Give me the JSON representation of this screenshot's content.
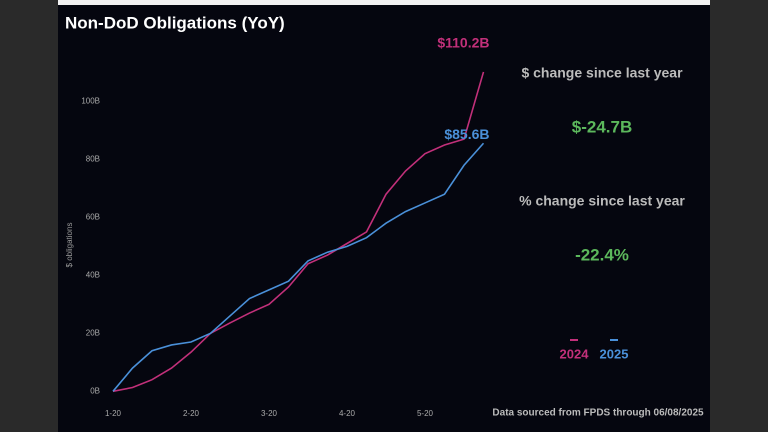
{
  "chart_data": {
    "type": "line",
    "title": "Non-DoD Obligations (YoY)",
    "y_label": "$ obligations",
    "categories": [
      "1-20",
      null,
      null,
      null,
      "2-20",
      null,
      null,
      null,
      "3-20",
      null,
      null,
      null,
      "4-20",
      null,
      null,
      null,
      "5-20",
      null,
      null,
      null
    ],
    "series": [
      {
        "name": "2024",
        "color": "#c2307a",
        "values": [
          0,
          1.3,
          4,
          8,
          13.5,
          20,
          23.6,
          27,
          30,
          36,
          44,
          47,
          51,
          55,
          68,
          76,
          82,
          85,
          87,
          110.2
        ],
        "value_labels": [
          null,
          null,
          null,
          null,
          null,
          null,
          null,
          null,
          null,
          null,
          null,
          null,
          null,
          null,
          null,
          null,
          null,
          null,
          null,
          "$110.2B"
        ]
      },
      {
        "name": "2025",
        "color": "#4a90d9",
        "values": [
          0,
          8,
          14,
          16,
          17,
          20,
          26,
          32,
          35,
          38,
          45,
          48,
          50,
          53,
          58,
          62,
          65,
          68,
          78,
          85.6
        ],
        "value_labels": [
          null,
          null,
          null,
          null,
          null,
          null,
          null,
          null,
          null,
          null,
          null,
          null,
          null,
          null,
          null,
          null,
          null,
          null,
          null,
          "$85.6B"
        ]
      }
    ],
    "ylim": [
      -3,
      105
    ],
    "yticks": [
      {
        "value": 0,
        "label": "0B"
      },
      {
        "value": 20,
        "label": "20B"
      },
      {
        "value": 40,
        "label": "40B"
      },
      {
        "value": 60,
        "label": "60B"
      },
      {
        "value": 80,
        "label": "80B"
      },
      {
        "value": 100,
        "label": "100B"
      }
    ],
    "grid": false
  },
  "panel": {
    "stats": [
      {
        "label": "$ change since last year",
        "value": "$-24.7B"
      },
      {
        "label": "% change since last year",
        "value": "-22.4%"
      }
    ],
    "source": "Data sourced from FPDS through 06/08/2025"
  }
}
